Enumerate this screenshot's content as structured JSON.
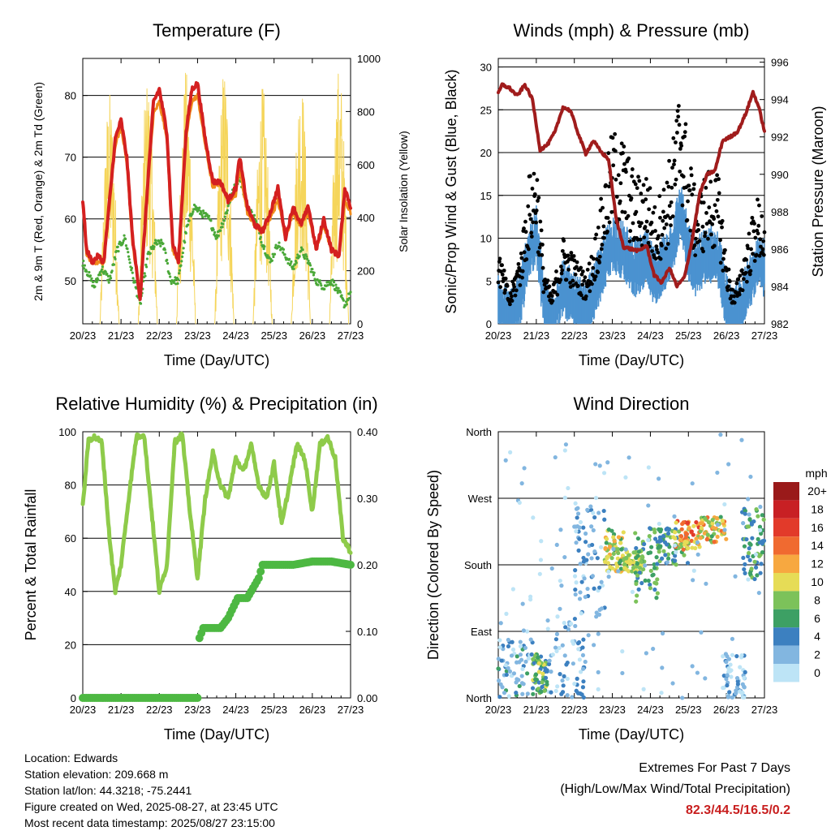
{
  "chart_data": [
    {
      "type": "line",
      "title": "Temperature (F)",
      "xlabel": "Time (Day/UTC)",
      "ylabel": "2m & 9m T (Red, Orange) & 2m Td (Green)",
      "y2label": "Solar Insolation (Yellow)",
      "x_ticks": [
        "20/23",
        "21/23",
        "22/23",
        "23/23",
        "24/23",
        "25/23",
        "26/23",
        "27/23"
      ],
      "ylim": [
        43,
        86
      ],
      "y_ticks": [
        50,
        60,
        70,
        80
      ],
      "y2lim": [
        0,
        1000
      ],
      "y2_ticks": [
        0,
        200,
        400,
        600,
        800,
        1000
      ],
      "grid": true,
      "series": [
        {
          "role": "2m T",
          "color": "#d42020",
          "x": [
            0,
            0.1,
            0.25,
            0.4,
            0.55,
            0.7,
            0.85,
            1.0,
            1.15,
            1.3,
            1.5,
            1.7,
            1.85,
            2.0,
            2.2,
            2.35,
            2.5,
            2.7,
            2.85,
            3.0,
            3.2,
            3.4,
            3.6,
            3.8,
            4.0,
            4.1,
            4.3,
            4.5,
            4.7,
            4.9,
            5.1,
            5.3,
            5.5,
            5.7,
            5.9,
            6.1,
            6.3,
            6.5,
            6.7,
            6.85,
            7.0
          ],
          "y": [
            63,
            55,
            53,
            54,
            53,
            63,
            73,
            76,
            70,
            57,
            47,
            66,
            79,
            81,
            74,
            56,
            53,
            74,
            81,
            82,
            73,
            66,
            66,
            63,
            65,
            70,
            62,
            59,
            58,
            61,
            65,
            57,
            62,
            59,
            62,
            55,
            60,
            55,
            54,
            65,
            62
          ]
        },
        {
          "role": "9m T",
          "color": "#f08c1c",
          "x": [
            0,
            0.1,
            0.25,
            0.4,
            0.55,
            0.7,
            0.85,
            1.0,
            1.15,
            1.3,
            1.5,
            1.7,
            1.85,
            2.0,
            2.2,
            2.35,
            2.5,
            2.7,
            2.85,
            3.0,
            3.2,
            3.4,
            3.6,
            3.8,
            4.0,
            4.1,
            4.3,
            4.5,
            4.7,
            4.9,
            5.1,
            5.3,
            5.5,
            5.7,
            5.9,
            6.1,
            6.3,
            6.5,
            6.7,
            6.85,
            7.0
          ],
          "y": [
            62,
            54,
            53,
            53,
            53,
            62,
            72,
            75,
            69,
            56,
            47,
            65,
            77,
            79,
            73,
            55,
            53,
            73,
            79,
            80,
            72,
            65,
            66,
            63,
            64,
            68,
            61,
            59,
            58,
            60,
            63,
            57,
            61,
            59,
            61,
            55,
            59,
            55,
            54,
            63,
            61
          ]
        },
        {
          "role": "2m Td",
          "color": "#4aa838",
          "x": [
            0,
            0.15,
            0.3,
            0.5,
            0.7,
            0.9,
            1.1,
            1.3,
            1.5,
            1.7,
            1.9,
            2.1,
            2.3,
            2.5,
            2.7,
            2.9,
            3.1,
            3.3,
            3.5,
            3.7,
            3.9,
            4.1,
            4.3,
            4.5,
            4.7,
            4.9,
            5.1,
            5.3,
            5.5,
            5.7,
            5.9,
            6.1,
            6.3,
            6.5,
            6.7,
            6.85,
            7.0
          ],
          "y": [
            53,
            51,
            49,
            52,
            50,
            55,
            57,
            51,
            46,
            54,
            56,
            56,
            50,
            50,
            58,
            62,
            61,
            60,
            57,
            60,
            64,
            67,
            62,
            60,
            56,
            53,
            56,
            54,
            52,
            55,
            53,
            50,
            49,
            50,
            48,
            46,
            48
          ]
        },
        {
          "role": "Solar Insolation",
          "color": "#f5d55a",
          "axis": "right",
          "days": [
            0,
            1,
            2,
            3,
            4,
            5,
            6
          ],
          "peaks": [
            880,
            940,
            960,
            980,
            900,
            950,
            980
          ]
        }
      ]
    },
    {
      "type": "line",
      "title": "Winds (mph) & Pressure (mb)",
      "xlabel": "Time (Day/UTC)",
      "ylabel": "Sonic/Prop Wind & Gust (Blue, Black)",
      "y2label": "Station Pressure (Maroon)",
      "x_ticks": [
        "20/23",
        "21/23",
        "22/23",
        "23/23",
        "24/23",
        "25/23",
        "26/23",
        "27/23"
      ],
      "ylim": [
        0,
        31
      ],
      "y_ticks": [
        0,
        5,
        10,
        15,
        20,
        25,
        30
      ],
      "y2lim": [
        982,
        996.2
      ],
      "y2_ticks": [
        982,
        984,
        986,
        988,
        990,
        992,
        994,
        996
      ],
      "grid": true,
      "series": [
        {
          "role": "Wind",
          "color": "#4b92d0",
          "x": [
            0,
            0.3,
            0.6,
            0.8,
            1.0,
            1.2,
            1.4,
            1.7,
            2.0,
            2.3,
            2.5,
            2.8,
            3.0,
            3.3,
            3.6,
            3.9,
            4.1,
            4.4,
            4.6,
            4.8,
            5.0,
            5.2,
            5.5,
            5.8,
            6.0,
            6.2,
            6.5,
            6.8,
            7.0
          ],
          "y": [
            3,
            1,
            4,
            9,
            11,
            3,
            1,
            5,
            3,
            2,
            4,
            8,
            10,
            9,
            7,
            8,
            6,
            8,
            10,
            14,
            9,
            7,
            9,
            8,
            3,
            1,
            4,
            8,
            7
          ]
        },
        {
          "role": "Gust",
          "color": "#000000",
          "x": [
            0,
            0.3,
            0.6,
            0.8,
            1.0,
            1.2,
            1.4,
            1.7,
            2.0,
            2.3,
            2.5,
            2.8,
            3.0,
            3.3,
            3.6,
            3.9,
            4.1,
            4.4,
            4.6,
            4.8,
            5.0,
            5.2,
            5.5,
            5.8,
            6.0,
            6.2,
            6.5,
            6.8,
            7.0
          ],
          "y": [
            8,
            3,
            8,
            15,
            18,
            6,
            3,
            9,
            7,
            5,
            8,
            15,
            20,
            19,
            15,
            16,
            12,
            15,
            19,
            26,
            18,
            13,
            16,
            15,
            7,
            3,
            8,
            13,
            12
          ]
        },
        {
          "role": "Station Pressure",
          "color": "#a01c1c",
          "axis": "right",
          "x": [
            0,
            0.1,
            0.3,
            0.5,
            0.7,
            0.9,
            1.1,
            1.3,
            1.5,
            1.7,
            1.9,
            2.1,
            2.3,
            2.5,
            2.7,
            2.9,
            3.1,
            3.3,
            3.5,
            3.7,
            3.9,
            4.1,
            4.3,
            4.5,
            4.7,
            4.9,
            5.1,
            5.3,
            5.5,
            5.7,
            5.9,
            6.1,
            6.3,
            6.5,
            6.7,
            6.85,
            7.0
          ],
          "y": [
            994.3,
            994.8,
            994.6,
            994.2,
            994.8,
            994.0,
            991.3,
            991.6,
            992.3,
            993.6,
            993.4,
            992.2,
            991.1,
            991.8,
            991.2,
            990.8,
            987.6,
            986.1,
            986.0,
            985.9,
            986.2,
            984.6,
            984.2,
            985.0,
            984.0,
            984.5,
            986.5,
            989.0,
            990.0,
            990.2,
            991.8,
            992.0,
            992.3,
            993.2,
            994.4,
            993.6,
            992.3
          ]
        }
      ]
    },
    {
      "type": "line",
      "title": "Relative Humidity (%) & Precipitation (in)",
      "xlabel": "Time (Day/UTC)",
      "ylabel": "Percent & Total Rainfall",
      "x_ticks": [
        "20/23",
        "21/23",
        "22/23",
        "23/23",
        "24/23",
        "25/23",
        "26/23",
        "27/23"
      ],
      "ylim": [
        0,
        100
      ],
      "y_ticks": [
        0,
        20,
        40,
        60,
        80,
        100
      ],
      "y2lim": [
        0,
        0.4
      ],
      "y2_ticks": [
        "0.00",
        "0.10",
        "0.20",
        "0.30",
        "0.40"
      ],
      "grid": true,
      "series": [
        {
          "role": "Relative Humidity",
          "color": "#8ecb4a",
          "x": [
            0,
            0.15,
            0.3,
            0.5,
            0.7,
            0.85,
            1.0,
            1.2,
            1.4,
            1.6,
            1.8,
            2.0,
            2.2,
            2.4,
            2.6,
            2.8,
            3.0,
            3.2,
            3.4,
            3.6,
            3.8,
            4.0,
            4.2,
            4.4,
            4.6,
            4.8,
            5.0,
            5.2,
            5.4,
            5.6,
            5.8,
            6.0,
            6.2,
            6.4,
            6.6,
            6.8,
            7.0
          ],
          "y": [
            72,
            97,
            98,
            96,
            60,
            40,
            50,
            75,
            98,
            99,
            70,
            40,
            50,
            96,
            99,
            70,
            45,
            75,
            92,
            80,
            75,
            90,
            85,
            95,
            80,
            75,
            88,
            65,
            80,
            95,
            90,
            70,
            95,
            98,
            90,
            60,
            55
          ]
        },
        {
          "role": "Total Precipitation",
          "color": "#4db842",
          "axis": "right",
          "x": [
            0,
            3.0,
            3.05,
            3.15,
            3.3,
            3.6,
            3.8,
            4.05,
            4.3,
            4.5,
            4.6,
            4.7,
            5.0,
            5.5,
            6.0,
            6.5,
            7.0
          ],
          "y": [
            0,
            0,
            0.09,
            0.105,
            0.105,
            0.105,
            0.12,
            0.15,
            0.15,
            0.17,
            0.18,
            0.2,
            0.2,
            0.2,
            0.205,
            0.205,
            0.2
          ]
        }
      ]
    },
    {
      "type": "scatter",
      "title": "Wind Direction",
      "xlabel": "Time (Day/UTC)",
      "ylabel": "Direction (Colored By Speed)",
      "x_ticks": [
        "20/23",
        "21/23",
        "22/23",
        "23/23",
        "24/23",
        "25/23",
        "26/23",
        "27/23"
      ],
      "y_ticks": [
        "North",
        "East",
        "South",
        "West",
        "North"
      ],
      "ylim": [
        0,
        360
      ],
      "grid": true,
      "legend": {
        "title": "mph",
        "labels": [
          "20+",
          "18",
          "16",
          "14",
          "12",
          "10",
          "8",
          "6",
          "4",
          "2",
          "0"
        ],
        "colors": [
          "#9a1a1a",
          "#c82024",
          "#e23a2a",
          "#f06a30",
          "#f7a840",
          "#e6dc56",
          "#7cc25a",
          "#3da064",
          "#3c80c0",
          "#82b6e0",
          "#bde4f6"
        ]
      },
      "clusters": [
        {
          "x0": 0.0,
          "x1": 0.9,
          "d0": 0,
          "d1": 80,
          "s0": 0,
          "s1": 6
        },
        {
          "x0": 0.9,
          "x1": 1.3,
          "d0": 5,
          "d1": 60,
          "s0": 3,
          "s1": 10
        },
        {
          "x0": 1.3,
          "x1": 2.3,
          "d0": 0,
          "d1": 110,
          "s0": 0,
          "s1": 5
        },
        {
          "x0": 2.0,
          "x1": 2.8,
          "d0": 100,
          "d1": 260,
          "s0": 0,
          "s1": 5
        },
        {
          "x0": 2.8,
          "x1": 3.3,
          "d0": 170,
          "d1": 230,
          "s0": 6,
          "s1": 12
        },
        {
          "x0": 3.3,
          "x1": 3.8,
          "d0": 170,
          "d1": 200,
          "s0": 8,
          "s1": 11
        },
        {
          "x0": 3.6,
          "x1": 4.2,
          "d0": 130,
          "d1": 230,
          "s0": 4,
          "s1": 9
        },
        {
          "x0": 4.2,
          "x1": 5.0,
          "d0": 180,
          "d1": 230,
          "s0": 3,
          "s1": 9
        },
        {
          "x0": 4.6,
          "x1": 5.3,
          "d0": 200,
          "d1": 240,
          "s0": 8,
          "s1": 16
        },
        {
          "x0": 5.3,
          "x1": 6.0,
          "d0": 210,
          "d1": 245,
          "s0": 6,
          "s1": 14
        },
        {
          "x0": 5.9,
          "x1": 6.5,
          "d0": 0,
          "d1": 60,
          "s0": 0,
          "s1": 4
        },
        {
          "x0": 6.4,
          "x1": 7.0,
          "d0": 160,
          "d1": 260,
          "s0": 3,
          "s1": 8
        },
        {
          "x0": 0.0,
          "x1": 7.0,
          "d0": 0,
          "d1": 360,
          "s0": 0,
          "s1": 3
        }
      ]
    }
  ],
  "info": {
    "location": "Location: Edwards",
    "elevation": "Station elevation: 209.668 m",
    "latlon": "Station lat/lon: 44.3218; -75.2441",
    "created": "Figure created on Wed, 2025-08-27, at 23:45 UTC",
    "recent": "Most recent data timestamp: 2025/08/27 23:15:00"
  },
  "extremes": {
    "line1": "Extremes For Past 7 Days",
    "line2": "(High/Low/Max Wind/Total Precipitation)",
    "values": "82.3/44.5/16.5/0.2"
  }
}
